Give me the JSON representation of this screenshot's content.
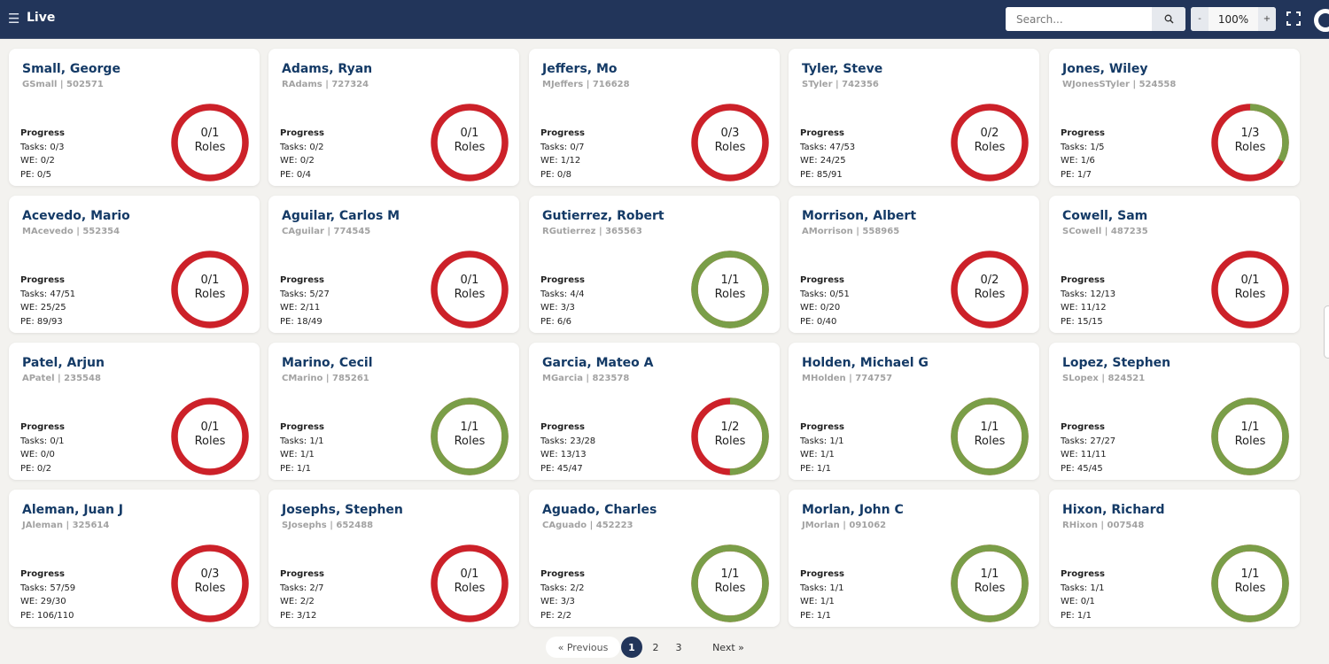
{
  "header": {
    "menu_icon": "hamburger-icon",
    "title": "Live",
    "search_placeholder": "Search...",
    "search_icon": "search-icon",
    "zoom_minus": "-",
    "zoom_value": "100%",
    "zoom_plus": "+",
    "fullscreen_icon": "fullscreen-icon",
    "logo_icon": "logo-icon"
  },
  "colors": {
    "header": "#22355a",
    "complete": "#7a9e48",
    "incomplete": "#cc2129",
    "name": "#143a66"
  },
  "labels": {
    "progress": "Progress",
    "tasks": "Tasks: ",
    "we": "WE: ",
    "pe": "PE: ",
    "roles": "Roles"
  },
  "cards": [
    {
      "name": "Small, George",
      "sub": "GSmall | 502571",
      "tasks": "0/3",
      "we": "0/2",
      "pe": "0/5",
      "roles": "0/1",
      "done": 0,
      "total": 1
    },
    {
      "name": "Adams, Ryan",
      "sub": "RAdams | 727324",
      "tasks": "0/2",
      "we": "0/2",
      "pe": "0/4",
      "roles": "0/1",
      "done": 0,
      "total": 1
    },
    {
      "name": "Jeffers, Mo",
      "sub": "MJeffers | 716628",
      "tasks": "0/7",
      "we": "1/12",
      "pe": "0/8",
      "roles": "0/3",
      "done": 0,
      "total": 3
    },
    {
      "name": "Tyler, Steve",
      "sub": "STyler | 742356",
      "tasks": "47/53",
      "we": "24/25",
      "pe": "85/91",
      "roles": "0/2",
      "done": 0,
      "total": 2
    },
    {
      "name": "Jones, Wiley",
      "sub": "WJonesSTyler | 524558",
      "tasks": "1/5",
      "we": "1/6",
      "pe": "1/7",
      "roles": "1/3",
      "done": 1,
      "total": 3
    },
    {
      "name": "Acevedo, Mario",
      "sub": "MAcevedo | 552354",
      "tasks": "47/51",
      "we": "25/25",
      "pe": "89/93",
      "roles": "0/1",
      "done": 0,
      "total": 1
    },
    {
      "name": "Aguilar, Carlos M",
      "sub": "CAguilar | 774545",
      "tasks": "5/27",
      "we": "2/11",
      "pe": "18/49",
      "roles": "0/1",
      "done": 0,
      "total": 1
    },
    {
      "name": "Gutierrez, Robert",
      "sub": "RGutierrez | 365563",
      "tasks": "4/4",
      "we": "3/3",
      "pe": "6/6",
      "roles": "1/1",
      "done": 1,
      "total": 1
    },
    {
      "name": "Morrison, Albert",
      "sub": "AMorrison | 558965",
      "tasks": "0/51",
      "we": "0/20",
      "pe": "0/40",
      "roles": "0/2",
      "done": 0,
      "total": 2
    },
    {
      "name": "Cowell, Sam",
      "sub": "SCowell | 487235",
      "tasks": "12/13",
      "we": "11/12",
      "pe": "15/15",
      "roles": "0/1",
      "done": 0,
      "total": 1
    },
    {
      "name": "Patel, Arjun",
      "sub": "APatel | 235548",
      "tasks": "0/1",
      "we": "0/0",
      "pe": "0/2",
      "roles": "0/1",
      "done": 0,
      "total": 1
    },
    {
      "name": "Marino, Cecil",
      "sub": "CMarino | 785261",
      "tasks": "1/1",
      "we": "1/1",
      "pe": "1/1",
      "roles": "1/1",
      "done": 1,
      "total": 1
    },
    {
      "name": "Garcia, Mateo A",
      "sub": "MGarcia | 823578",
      "tasks": "23/28",
      "we": "13/13",
      "pe": "45/47",
      "roles": "1/2",
      "done": 1,
      "total": 2
    },
    {
      "name": "Holden, Michael G",
      "sub": "MHolden | 774757",
      "tasks": "1/1",
      "we": "1/1",
      "pe": "1/1",
      "roles": "1/1",
      "done": 1,
      "total": 1
    },
    {
      "name": "Lopez, Stephen",
      "sub": "SLopex | 824521",
      "tasks": "27/27",
      "we": "11/11",
      "pe": "45/45",
      "roles": "1/1",
      "done": 1,
      "total": 1
    },
    {
      "name": "Aleman, Juan J",
      "sub": "JAleman | 325614",
      "tasks": "57/59",
      "we": "29/30",
      "pe": "106/110",
      "roles": "0/3",
      "done": 0,
      "total": 3
    },
    {
      "name": "Josephs, Stephen",
      "sub": "SJosephs | 652488",
      "tasks": "2/7",
      "we": "2/2",
      "pe": "3/12",
      "roles": "0/1",
      "done": 0,
      "total": 1
    },
    {
      "name": "Aguado, Charles",
      "sub": "CAguado | 452223",
      "tasks": "2/2",
      "we": "3/3",
      "pe": "2/2",
      "roles": "1/1",
      "done": 1,
      "total": 1
    },
    {
      "name": "Morlan, John C",
      "sub": "JMorlan | 091062",
      "tasks": "1/1",
      "we": "1/1",
      "pe": "1/1",
      "roles": "1/1",
      "done": 1,
      "total": 1
    },
    {
      "name": "Hixon, Richard",
      "sub": "RHixon | 007548",
      "tasks": "1/1",
      "we": "0/1",
      "pe": "1/1",
      "roles": "1/1",
      "done": 1,
      "total": 1
    }
  ],
  "pagination": {
    "previous": "« Previous",
    "pages": [
      "1",
      "2",
      "3"
    ],
    "current": "1",
    "next": "Next »"
  }
}
